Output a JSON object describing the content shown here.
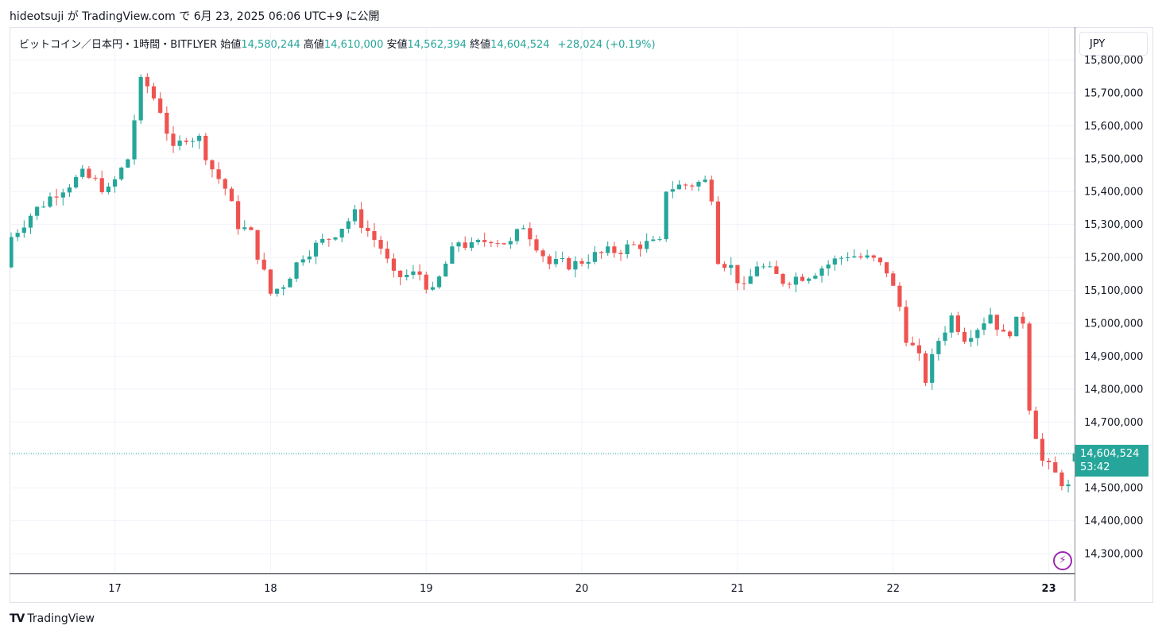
{
  "header": {
    "text": "hideotsuji が TradingView.com で 6月 23, 2025 06:06 UTC+9 に公開"
  },
  "legend": {
    "symbol": "ビットコイン／日本円・1時間・BITFLYER",
    "open_label": "始値",
    "open": "14,580,244",
    "high_label": "高値",
    "high": "14,610,000",
    "low_label": "安値",
    "low": "14,562,394",
    "close_label": "終値",
    "close": "14,604,524",
    "change": "+28,024 (+0.19%)"
  },
  "currency_button": "JPY",
  "last_price": {
    "value": "14,604,524",
    "countdown": "53:42"
  },
  "footer": {
    "brand": "TradingView"
  },
  "colors": {
    "up": "#26a69a",
    "down": "#ef5350",
    "grid": "#f0f3fa",
    "accent": "#9c27b0"
  },
  "icons": {
    "logo": "tradingview-logo-icon",
    "alert": "lightning-icon"
  },
  "chart_data": {
    "type": "candlestick",
    "interval": "1h",
    "ylim": [
      14240000,
      15900000
    ],
    "y_ticks": [
      15800000,
      15700000,
      15600000,
      15500000,
      15400000,
      15300000,
      15200000,
      15100000,
      15000000,
      14900000,
      14800000,
      14700000,
      14600000,
      14500000,
      14400000,
      14300000
    ],
    "y_tick_labels": [
      "15,800,000",
      "15,700,000",
      "15,600,000",
      "15,500,000",
      "15,400,000",
      "15,300,000",
      "15,200,000",
      "15,100,000",
      "15,000,000",
      "14,900,000",
      "14,800,000",
      "14,700,000",
      "14,600,000",
      "14,500,000",
      "14,400,000",
      "14,300,000"
    ],
    "x_day_labels": [
      {
        "label": "17",
        "index": 16
      },
      {
        "label": "18",
        "index": 40
      },
      {
        "label": "19",
        "index": 64
      },
      {
        "label": "20",
        "index": 88
      },
      {
        "label": "21",
        "index": 112
      },
      {
        "label": "22",
        "index": 136
      },
      {
        "label": "23",
        "index": 160
      }
    ],
    "bars_count": 165,
    "close_price": 14604524
  }
}
